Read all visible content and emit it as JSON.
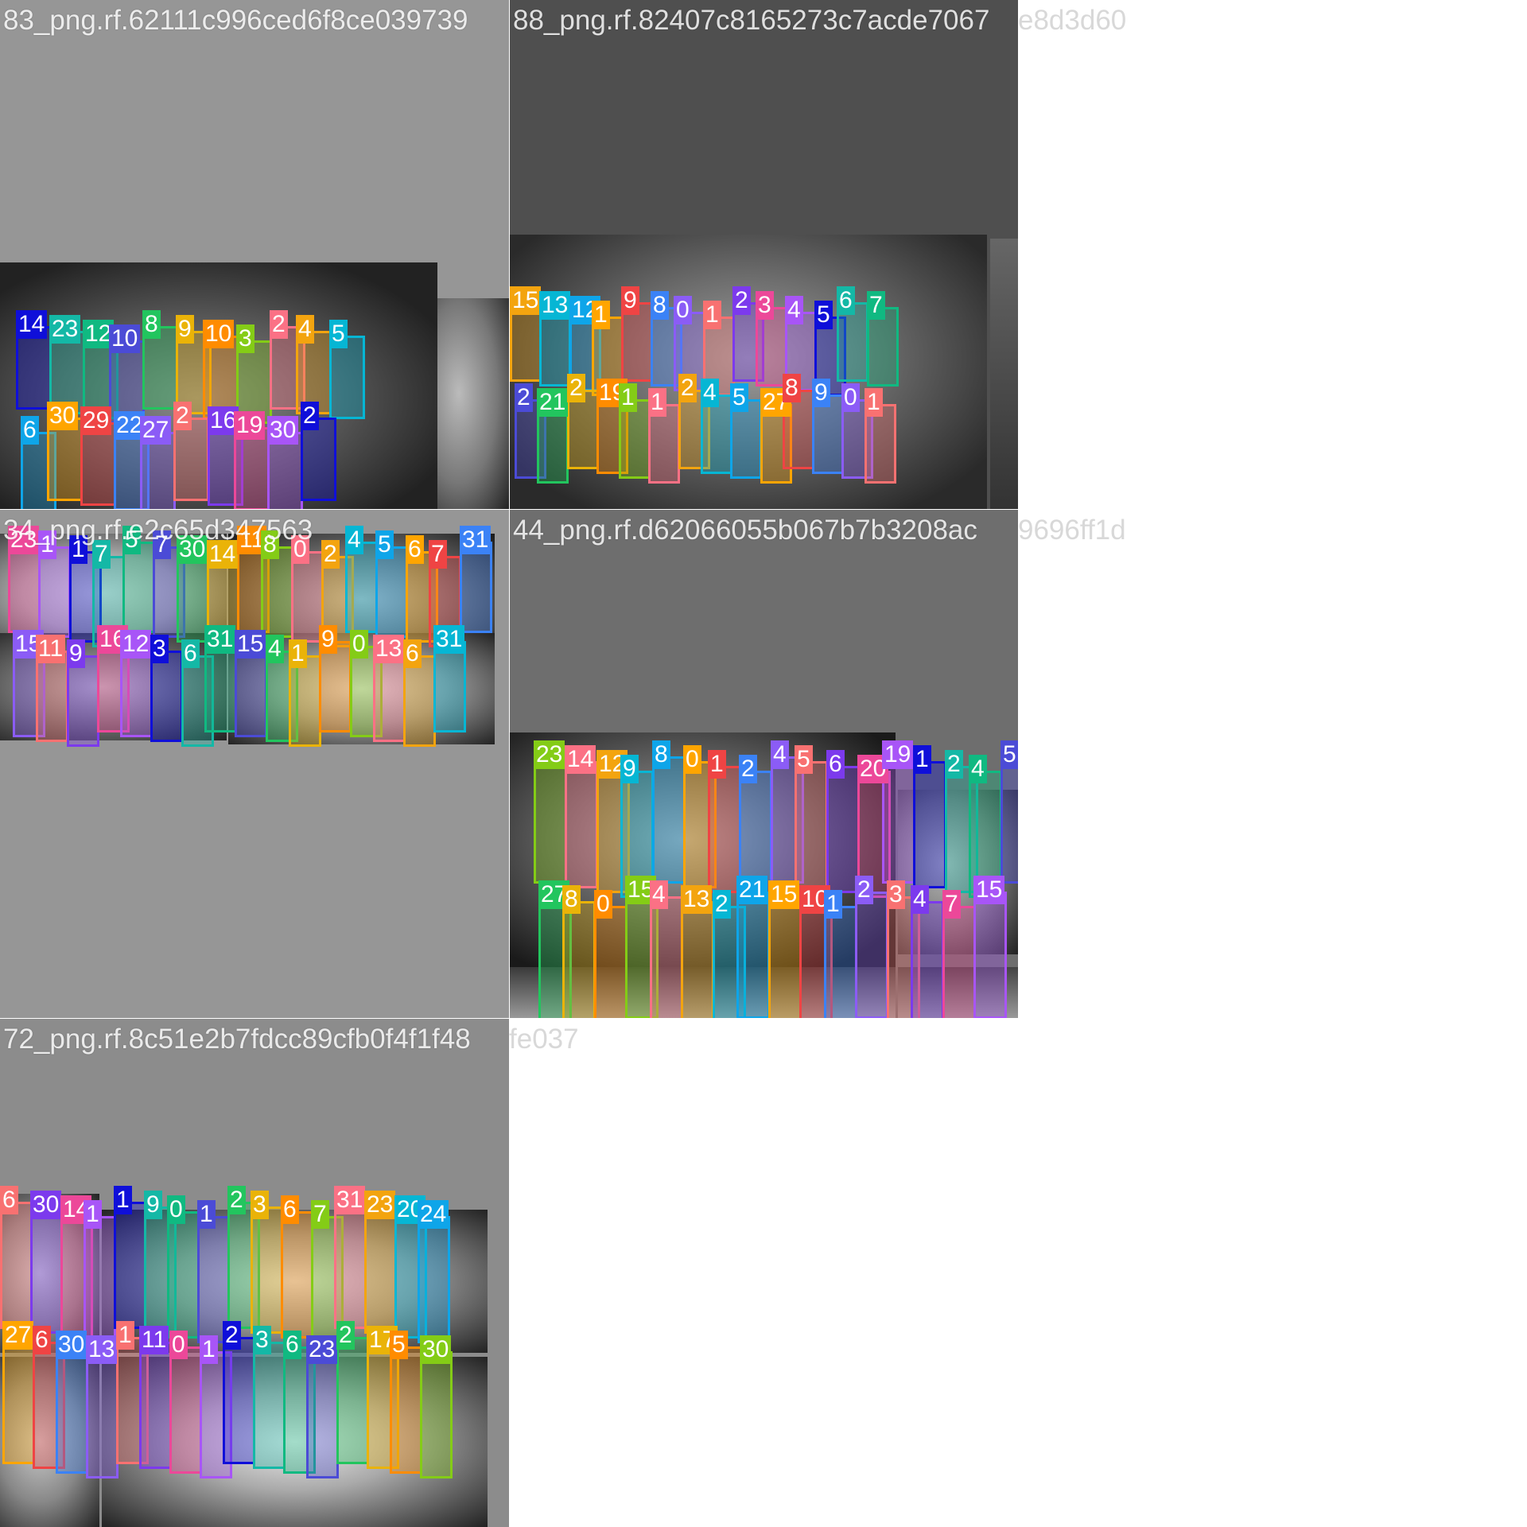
{
  "tiles": [
    {
      "caption": "83_png.rf.62111c996ced6f8ce039739",
      "caption_overflow": "",
      "background": "#969696",
      "labels": [
        "14",
        "23",
        "12",
        "10",
        "8",
        "9",
        "10",
        "3",
        "2",
        "4",
        "5",
        "6",
        "30",
        "29",
        "22",
        "27",
        "2",
        "16",
        "19",
        "30",
        "2"
      ]
    },
    {
      "caption": "88_png.rf.82407c8165273c7acde7067",
      "caption_overflow": "e8d3d60",
      "background": "#4f4f4f",
      "labels": [
        "15",
        "13",
        "12",
        "1",
        "9",
        "8",
        "0",
        "1",
        "2",
        "3",
        "4",
        "5",
        "6",
        "7",
        "2",
        "21",
        "2",
        "19",
        "1",
        "1",
        "2",
        "4",
        "5",
        "27",
        "8",
        "9",
        "0",
        "1"
      ]
    },
    {
      "caption": "34_png.rf.e2c65d347563",
      "caption_overflow": "",
      "background": "#969696",
      "labels": [
        "23",
        "1",
        "1",
        "7",
        "5",
        "7",
        "30",
        "14",
        "11",
        "8",
        "0",
        "2",
        "4",
        "5",
        "6",
        "7",
        "31",
        "15",
        "11",
        "9",
        "16",
        "12",
        "3",
        "6",
        "31",
        "15",
        "4",
        "1",
        "9",
        "0",
        "13",
        "6",
        "31"
      ]
    },
    {
      "caption": "44_png.rf.d62066055b067b7b3208ac",
      "caption_overflow": "9696ff1d",
      "background": "#6e6e6e",
      "labels": [
        "23",
        "14",
        "12",
        "9",
        "8",
        "0",
        "1",
        "2",
        "4",
        "5",
        "6",
        "20",
        "19",
        "1",
        "2",
        "4",
        "5",
        "27",
        "8",
        "0",
        "15",
        "4",
        "13",
        "2",
        "21",
        "15",
        "10",
        "1",
        "2",
        "3",
        "4",
        "7",
        "15"
      ]
    },
    {
      "caption": "72_png.rf.8c51e2b7fdcc89cfb0f4f1f48",
      "caption_overflow": "fe037",
      "background": "#8c8c8c",
      "labels": [
        "6",
        "30",
        "14",
        "1",
        "1",
        "9",
        "0",
        "1",
        "2",
        "3",
        "6",
        "7",
        "31",
        "23",
        "20",
        "24",
        "27",
        "6",
        "30",
        "13",
        "1",
        "11",
        "0",
        "1",
        "2",
        "3",
        "6",
        "23",
        "2",
        "17",
        "5",
        "30"
      ]
    }
  ],
  "colors": [
    "#0f0fd9",
    "#4b4bd6",
    "#ff8c00",
    "#f3a40f",
    "#ffa500",
    "#8b5cf6",
    "#ec4899",
    "#14b8a6",
    "#22c55e",
    "#84cc16",
    "#06b6d4",
    "#ef4444",
    "#f87171",
    "#a855f7",
    "#10b981",
    "#eab308",
    "#fb7185",
    "#0ea5e9",
    "#3b82f6",
    "#7c3aed"
  ]
}
